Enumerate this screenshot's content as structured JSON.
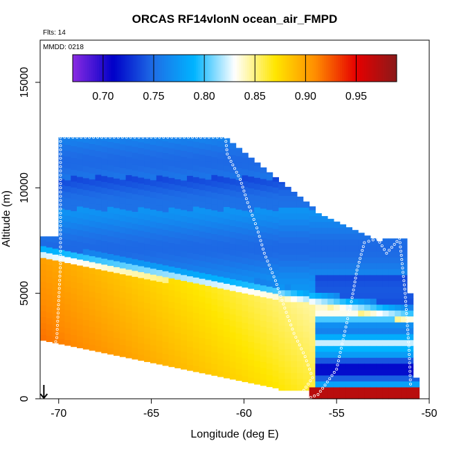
{
  "chart_data": {
    "type": "heatmap",
    "title": "ORCAS RF14vlonN ocean_air_FMPD",
    "annotations": [
      "Flts: 14",
      "MMDD: 0218"
    ],
    "xlabel": "Longitude (deg E)",
    "ylabel": "Altitude (m)",
    "xlim": [
      -71,
      -50
    ],
    "ylim": [
      0,
      17000
    ],
    "xticks": [
      -70,
      -65,
      -60,
      -55,
      -50
    ],
    "yticks": [
      0,
      5000,
      10000,
      15000
    ],
    "grid": false,
    "colorbar": {
      "position": "top",
      "range": [
        0.67,
        0.99
      ],
      "ticks": [
        0.7,
        0.75,
        0.8,
        0.85,
        0.9,
        0.95
      ],
      "tick_labels": [
        "0.70",
        "0.75",
        "0.80",
        "0.85",
        "0.90",
        "0.95"
      ],
      "colors": [
        "#8a2be2",
        "#0000c8",
        "#1e6ee6",
        "#00b4ff",
        "#ffffff",
        "#ffe600",
        "#ff8c00",
        "#e60000",
        "#8b1a1a"
      ]
    },
    "field_description_values": {
      "upper_layer_value": 0.76,
      "mid_layer_min": 0.73,
      "lower_left_max": 0.93,
      "surface_east_value": 0.97
    },
    "flight_track": [
      [
        -71.0,
        0
      ],
      [
        -70.1,
        2900
      ],
      [
        -69.9,
        6400
      ],
      [
        -69.9,
        12400
      ],
      [
        -61,
        12400
      ],
      [
        -60.9,
        11600
      ],
      [
        -60.2,
        10400
      ],
      [
        -59.8,
        9300
      ],
      [
        -59.3,
        8100
      ],
      [
        -58.9,
        6900
      ],
      [
        -58.3,
        5600
      ],
      [
        -57.8,
        4300
      ],
      [
        -57.3,
        3100
      ],
      [
        -56.7,
        2000
      ],
      [
        -56.3,
        1000
      ],
      [
        -57.0,
        100
      ],
      [
        -56.6,
        0
      ],
      [
        -56.0,
        200
      ],
      [
        -55.0,
        1400
      ],
      [
        -54.6,
        3000
      ],
      [
        -54.2,
        4600
      ],
      [
        -53.9,
        6100
      ],
      [
        -53.5,
        7400
      ],
      [
        -52.8,
        7600
      ],
      [
        -52.3,
        6900
      ],
      [
        -51.6,
        7600
      ],
      [
        -51.3,
        5000
      ],
      [
        -51.1,
        2500
      ],
      [
        -51.0,
        500
      ]
    ],
    "marker": {
      "x": -70.8,
      "y": 0,
      "symbol": "down-arrow"
    }
  }
}
